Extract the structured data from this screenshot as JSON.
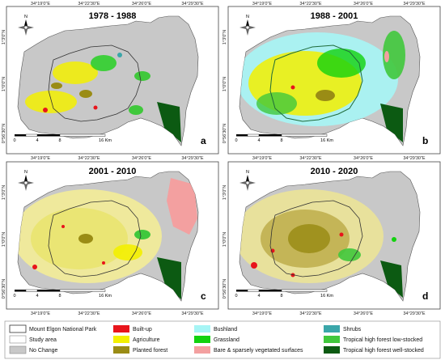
{
  "panels": [
    {
      "id": "a",
      "title": "1978 - 1988",
      "letter": "a"
    },
    {
      "id": "b",
      "title": "1988 - 2001",
      "letter": "b"
    },
    {
      "id": "c",
      "title": "2001 - 2010",
      "letter": "c"
    },
    {
      "id": "d",
      "title": "2010 - 2020",
      "letter": "d"
    }
  ],
  "axes": {
    "lon_labels": [
      "34°19'0\"E",
      "34°22'30\"E",
      "34°26'0\"E",
      "34°29'30\"E"
    ],
    "lat_labels": [
      "1°3'0\"N",
      "1°0'0\"N",
      "0°56'30\"N"
    ]
  },
  "north_arrow": "N",
  "scale_bar": {
    "labels": [
      "0",
      "4",
      "8",
      "16 Km"
    ]
  },
  "legend": [
    {
      "label": "Mount Elgon National Park",
      "color": "#ffffff",
      "outline": "#333333"
    },
    {
      "label": "Study area",
      "color": "#ffffff",
      "outline": "#888888"
    },
    {
      "label": "No Change",
      "color": "#c8c8c8",
      "outline": "#888888"
    },
    {
      "label": "Built-up",
      "color": "#e8141b"
    },
    {
      "label": "Agriculture",
      "color": "#f3f000"
    },
    {
      "label": "Planted forest",
      "color": "#9a8c15"
    },
    {
      "label": "Bushland",
      "color": "#a6f5f5"
    },
    {
      "label": "Grassland",
      "color": "#12d20e"
    },
    {
      "label": "Bare & sparsely vegetated surfaces",
      "color": "#f3a0a0"
    },
    {
      "label": "Shrubs",
      "color": "#3aa6a9"
    },
    {
      "label": "Tropical high forest low-stocked",
      "color": "#40c83c"
    },
    {
      "label": "Tropical high forest well-stocked",
      "color": "#0c5a12"
    }
  ]
}
